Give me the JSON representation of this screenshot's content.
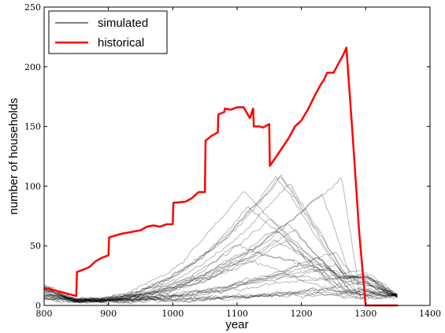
{
  "chart_data": {
    "type": "line",
    "xlabel": "year",
    "ylabel": "number of households",
    "xlim": [
      800,
      1400
    ],
    "ylim": [
      0,
      250
    ],
    "x_ticks": [
      800,
      900,
      1000,
      1100,
      1200,
      1300,
      1400
    ],
    "y_ticks": [
      0,
      50,
      100,
      150,
      200,
      250
    ],
    "legend": {
      "placement": "top-left",
      "entries": [
        "simulated",
        "historical"
      ]
    },
    "grid": false,
    "colors": {
      "simulated": "#000000",
      "historical": "#ff0000"
    },
    "series": [
      {
        "name": "historical",
        "x": [
          800,
          850,
          851,
          870,
          880,
          890,
          900,
          901,
          920,
          940,
          950,
          960,
          970,
          980,
          990,
          1000,
          1001,
          1020,
          1030,
          1040,
          1050,
          1051,
          1060,
          1070,
          1071,
          1080,
          1081,
          1090,
          1100,
          1110,
          1120,
          1125,
          1126,
          1135,
          1140,
          1150,
          1151,
          1160,
          1180,
          1190,
          1200,
          1210,
          1220,
          1230,
          1235,
          1240,
          1250,
          1255,
          1260,
          1265,
          1270,
          1280,
          1290,
          1300,
          1350
        ],
        "y": [
          15,
          8,
          28,
          32,
          37,
          40,
          42,
          57,
          60,
          62,
          63,
          66,
          67,
          66,
          68,
          68,
          86,
          87,
          90,
          95,
          95,
          138,
          142,
          145,
          160,
          162,
          165,
          164,
          166,
          166,
          157,
          165,
          150,
          150,
          149,
          152,
          117,
          124,
          140,
          150,
          155,
          164,
          175,
          185,
          189,
          195,
          195,
          200,
          205,
          210,
          216,
          140,
          60,
          0,
          0
        ]
      },
      {
        "name": "simulated",
        "description_note": "",
        "x": [],
        "y": []
      }
    ]
  }
}
